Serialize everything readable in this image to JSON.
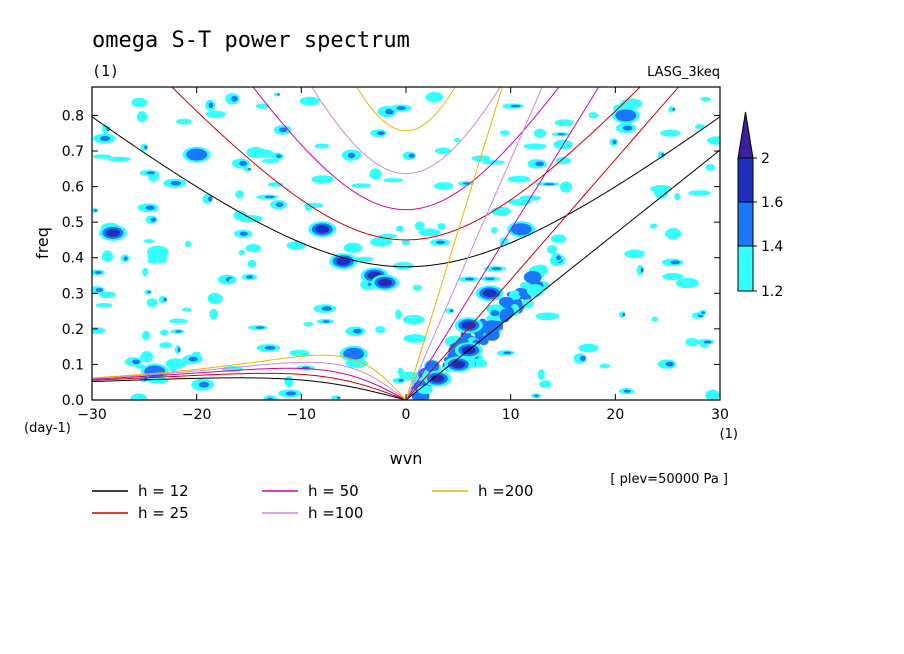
{
  "chart_data": {
    "type": "heatmap",
    "title": "omega S-T power spectrum",
    "subtitle_left": "(1)",
    "subtitle_right": "LASG_3keq",
    "xlabel": "wvn",
    "ylabel": "freq",
    "x_unit_label": "(1)",
    "y_unit_label": "(day-1)",
    "note": "[ plev=50000 Pa ]",
    "xlim": [
      -30,
      30
    ],
    "ylim": [
      0,
      0.88
    ],
    "xticks": [
      -30,
      -20,
      -10,
      0,
      10,
      20,
      30
    ],
    "yticks": [
      0.0,
      0.1,
      0.2,
      0.3,
      0.4,
      0.5,
      0.6,
      0.7,
      0.8
    ],
    "ytick_labels": [
      "0.0",
      "0.1",
      "0.2",
      "0.3",
      "0.4",
      "0.5",
      "0.6",
      "0.7",
      "0.8"
    ],
    "colorbar": {
      "levels": [
        1.2,
        1.4,
        1.6,
        2
      ],
      "labels": [
        "1.2",
        "1.4",
        "1.6",
        "2"
      ],
      "colors": [
        "#33ffff",
        "#1a75ff",
        "#1f2fbd",
        "#3d1f9e"
      ]
    },
    "dispersion_curves": [
      {
        "label": "h = 12",
        "h": 12,
        "color": "#000000"
      },
      {
        "label": "h = 25",
        "h": 25,
        "color": "#cc0000"
      },
      {
        "label": "h = 50",
        "h": 50,
        "color": "#cc00aa"
      },
      {
        "label": "h =100",
        "h": 100,
        "color": "#cc88dd"
      },
      {
        "label": "h =200",
        "h": 200,
        "color": "#e6b800"
      }
    ],
    "power_regions": [
      {
        "x": -28,
        "y": 0.47,
        "level": 3
      },
      {
        "x": -20,
        "y": 0.69,
        "level": 2
      },
      {
        "x": -6,
        "y": 0.39,
        "level": 3
      },
      {
        "x": -3,
        "y": 0.35,
        "level": 3
      },
      {
        "x": -2,
        "y": 0.33,
        "level": 4
      },
      {
        "x": -8,
        "y": 0.48,
        "level": 3
      },
      {
        "x": 3,
        "y": 0.06,
        "level": 4
      },
      {
        "x": 5,
        "y": 0.1,
        "level": 4
      },
      {
        "x": 6,
        "y": 0.14,
        "level": 4
      },
      {
        "x": 8,
        "y": 0.3,
        "level": 3
      },
      {
        "x": 6,
        "y": 0.21,
        "level": 3
      },
      {
        "x": 11,
        "y": 0.48,
        "level": 2
      },
      {
        "x": 21,
        "y": 0.8,
        "level": 2
      },
      {
        "x": -24,
        "y": 0.08,
        "level": 2
      },
      {
        "x": -5,
        "y": 0.13,
        "level": 2
      }
    ]
  }
}
